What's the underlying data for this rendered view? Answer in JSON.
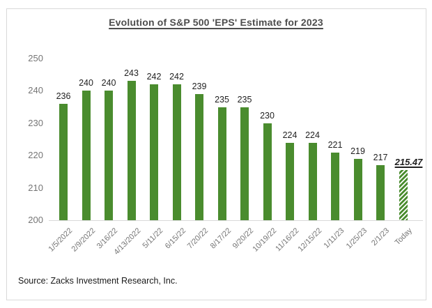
{
  "title": "Evolution of S&P 500 'EPS' Estimate for 2023",
  "source": "Source: Zacks Investment Research, Inc.",
  "colors": {
    "bar_green": "#4a8c2e",
    "axis_gray": "#d9d9d9",
    "title_gray": "#4d4d4d",
    "tick_gray": "#757575",
    "value_black": "#1f1f1f",
    "frame_border_gray": "#d9d9d9"
  },
  "chart_data": {
    "type": "bar",
    "title": "Evolution of S&P 500 'EPS' Estimate for 2023",
    "categories": [
      "1/5/2022",
      "2/9/2022",
      "3/16/22",
      "4/13/2022",
      "5/11/22",
      "6/15/22",
      "7/20/22",
      "8/17/22",
      "9/20/22",
      "10/19/22",
      "11/16/22",
      "12/15/22",
      "1/11/23",
      "1/25/23",
      "2/1/23",
      "Today"
    ],
    "values": [
      236,
      240,
      240,
      243,
      242,
      242,
      239,
      235,
      235,
      230,
      224,
      224,
      221,
      219,
      217,
      215.47
    ],
    "value_labels": [
      "236",
      "240",
      "240",
      "243",
      "242",
      "242",
      "239",
      "235",
      "235",
      "230",
      "224",
      "224",
      "221",
      "219",
      "217",
      "215.47"
    ],
    "xlabel": "",
    "ylabel": "",
    "ylim": [
      200,
      250
    ],
    "yticks": [
      200,
      210,
      220,
      230,
      240,
      250
    ],
    "grid": false,
    "legend": false,
    "last_bar_hatched": true,
    "source": "Source: Zacks Investment Research, Inc."
  }
}
